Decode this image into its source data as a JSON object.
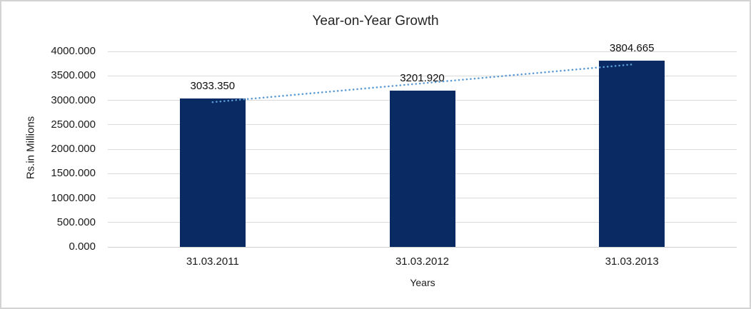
{
  "chart_data": {
    "type": "bar",
    "title": "Year-on-Year Growth",
    "xlabel": "Years",
    "ylabel": "Rs.in Millions",
    "categories": [
      "31.03.2011",
      "31.03.2012",
      "31.03.2013"
    ],
    "values": [
      3033.35,
      3201.92,
      3804.665
    ],
    "data_labels": [
      "3033.350",
      "3201.920",
      "3804.665"
    ],
    "ytick_labels": [
      "0.000",
      "500.000",
      "1000.000",
      "1500.000",
      "2000.000",
      "2500.000",
      "3000.000",
      "3500.000",
      "4000.000"
    ],
    "ylim": [
      0,
      4000
    ],
    "ytick_step": 500,
    "grid": true,
    "legend": "none",
    "bar_color": "#0a2a63",
    "gridline_color": "#d9d9d9",
    "axis_line_color": "#cfcfcf",
    "trendline": {
      "type": "linear",
      "style": "dotted",
      "color": "#5b9bd5"
    }
  }
}
